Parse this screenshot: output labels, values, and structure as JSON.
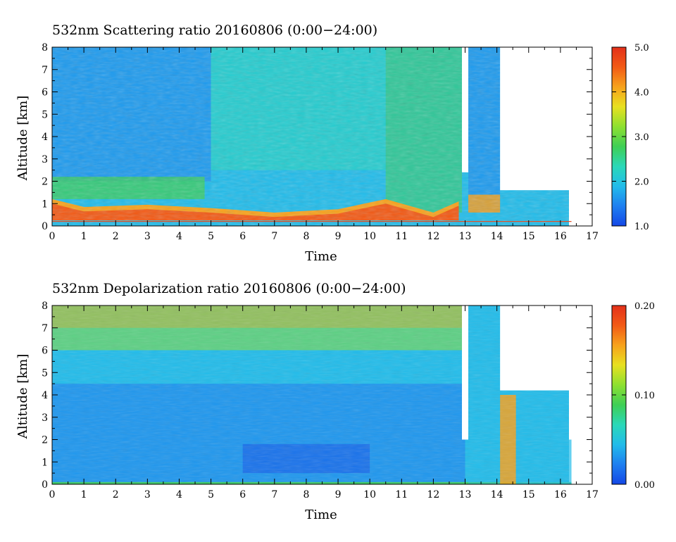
{
  "colors": {
    "background": "#ffffff",
    "clear_area": "#ffffff",
    "ground_line": "#e0522a",
    "colormap": [
      "#1447e6",
      "#1e7ff0",
      "#22bcea",
      "#2ad8b8",
      "#3ecf55",
      "#8ee030",
      "#e8e020",
      "#f7a21c",
      "#f25a16",
      "#e3301a"
    ]
  },
  "chart_data": [
    {
      "type": "heatmap",
      "title": "532nm Scattering ratio  20160806 (0:00−24:00)",
      "xlabel": "Time",
      "ylabel": "Altitude [km]",
      "xlim": [
        0,
        17
      ],
      "ylim": [
        0,
        8
      ],
      "x_ticks": [
        "0",
        "1",
        "2",
        "3",
        "4",
        "5",
        "6",
        "7",
        "8",
        "9",
        "10",
        "11",
        "12",
        "13",
        "14",
        "15",
        "16",
        "17"
      ],
      "y_ticks": [
        "0",
        "1",
        "2",
        "3",
        "4",
        "5",
        "6",
        "7",
        "8"
      ],
      "data_extent_x": [
        0,
        16.35
      ],
      "colorbar": {
        "range": [
          1.0,
          5.0
        ],
        "ticks": [
          "1.0",
          "2.0",
          "3.0",
          "4.0",
          "5.0"
        ]
      },
      "ground_line_altitude_km": 0.2,
      "features": {
        "boundary_layer_top_km": [
          {
            "time": 0,
            "alt": 1.2
          },
          {
            "time": 1,
            "alt": 0.85
          },
          {
            "time": 3,
            "alt": 0.95
          },
          {
            "time": 5,
            "alt": 0.8
          },
          {
            "time": 7,
            "alt": 0.6
          },
          {
            "time": 9,
            "alt": 0.75
          },
          {
            "time": 10.5,
            "alt": 1.2
          },
          {
            "time": 12,
            "alt": 0.6
          },
          {
            "time": 12.8,
            "alt": 1.1
          }
        ],
        "cloud_gaps": [
          [
            12.9,
            13.1
          ],
          [
            14.1,
            16.35
          ]
        ]
      }
    },
    {
      "type": "heatmap",
      "title": "532nm Depolarization ratio  20160806 (0:00−24:00)",
      "xlabel": "Time",
      "ylabel": "Altitude [km]",
      "xlim": [
        0,
        17
      ],
      "ylim": [
        0,
        8
      ],
      "x_ticks": [
        "0",
        "1",
        "2",
        "3",
        "4",
        "5",
        "6",
        "7",
        "8",
        "9",
        "10",
        "11",
        "12",
        "13",
        "14",
        "15",
        "16",
        "17"
      ],
      "y_ticks": [
        "0",
        "1",
        "2",
        "3",
        "4",
        "5",
        "6",
        "7",
        "8"
      ],
      "data_extent_x": [
        0,
        16.35
      ],
      "colorbar": {
        "range": [
          0.0,
          0.2
        ],
        "ticks": [
          "0.00",
          "0.10",
          "0.20"
        ]
      },
      "features": {
        "high_depol_above_km": 6.0,
        "cloud_gaps": [
          [
            12.9,
            13.1
          ],
          [
            14.1,
            16.35
          ]
        ]
      }
    }
  ]
}
